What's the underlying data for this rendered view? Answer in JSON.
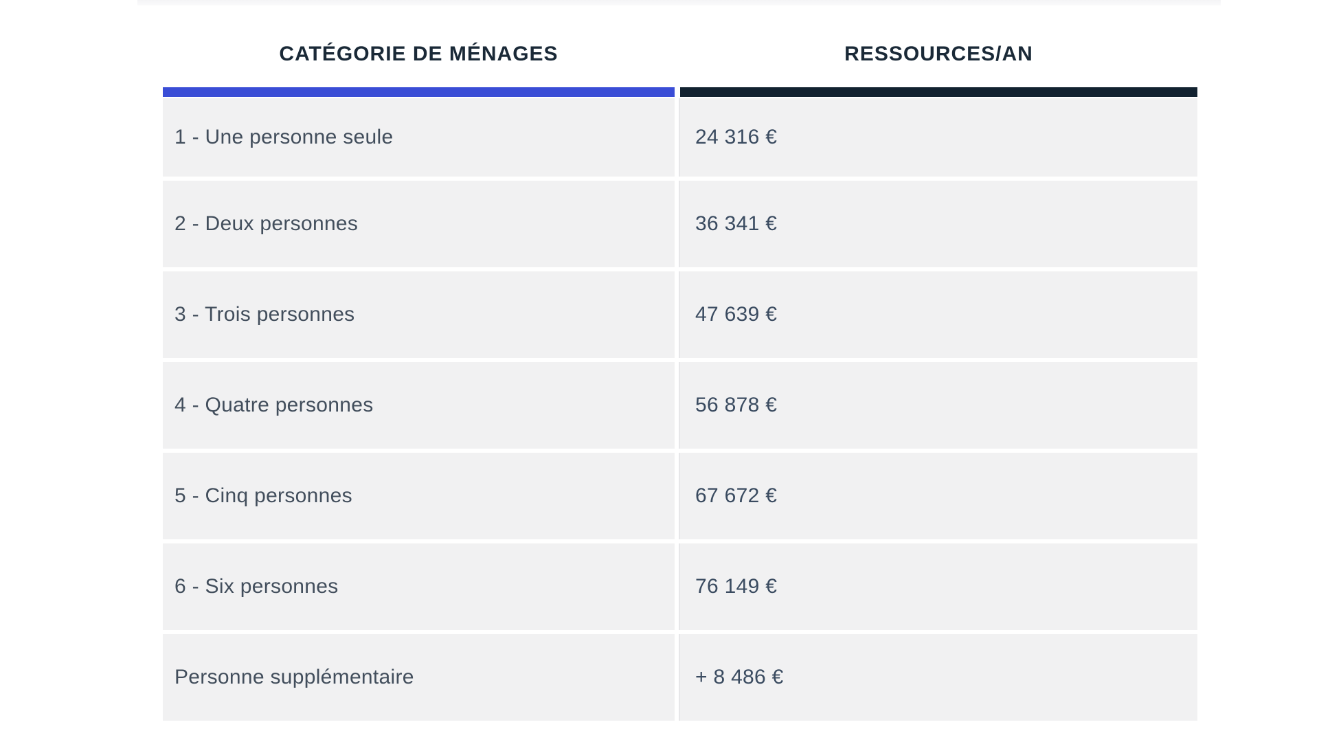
{
  "table": {
    "headers": [
      "CATÉGORIE DE MÉNAGES",
      "RESSOURCES/AN"
    ],
    "rows": [
      {
        "category": "1 - Une personne seule",
        "resources": "24 316 €"
      },
      {
        "category": "2 - Deux personnes",
        "resources": "36 341 €"
      },
      {
        "category": "3 - Trois personnes",
        "resources": "47 639 €"
      },
      {
        "category": "4 - Quatre personnes",
        "resources": "56 878 €"
      },
      {
        "category": "5 - Cinq personnes",
        "resources": "67 672 €"
      },
      {
        "category": "6 - Six personnes",
        "resources": "76 149 €"
      },
      {
        "category": "Personne supplémentaire",
        "resources": "+ 8 486 €"
      }
    ]
  },
  "colors": {
    "accent_blue_bar": "#3a4dd6",
    "accent_dark_navy_bar": "#122230",
    "row_background": "#f1f1f2",
    "header_text": "#1a2937",
    "category_text": "#424e5c",
    "value_text": "#3a4b60",
    "column_divider": "#e7e7e9",
    "top_strip": "#f6f6f8",
    "page_background": "#ffffff"
  },
  "chart_data": {
    "type": "table",
    "columns": [
      "CATÉGORIE DE MÉNAGES",
      "RESSOURCES/AN"
    ],
    "rows": [
      [
        "1 - Une personne seule",
        "24 316 €"
      ],
      [
        "2 - Deux personnes",
        "36 341 €"
      ],
      [
        "3 - Trois personnes",
        "47 639 €"
      ],
      [
        "4 - Quatre personnes",
        "56 878 €"
      ],
      [
        "5 - Cinq personnes",
        "67 672 €"
      ],
      [
        "6 - Six personnes",
        "76 149 €"
      ],
      [
        "Personne supplémentaire",
        "+ 8 486 €"
      ]
    ],
    "values_eur_per_year": [
      24316,
      36341,
      47639,
      56878,
      67672,
      76149,
      8486
    ],
    "layout": {
      "header_accent_colors": [
        "#3a4dd6",
        "#122230"
      ],
      "grid": "rows separated by white gaps, light vertical divider between columns",
      "legend": "none"
    }
  }
}
